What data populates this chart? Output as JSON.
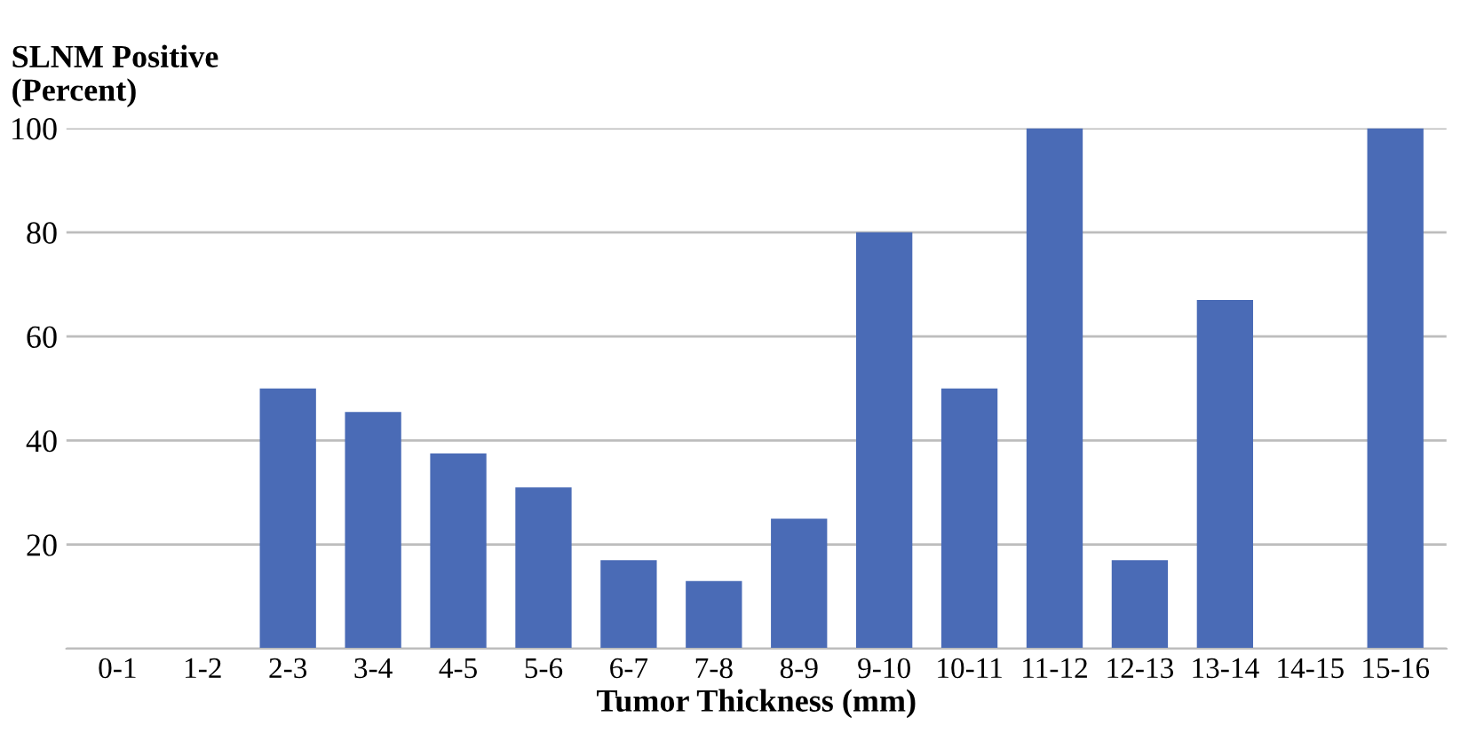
{
  "chart_data": {
    "type": "bar",
    "ylabel": "SLNM Positive\n(Percent)",
    "xlabel": "Tumor Thickness (mm)",
    "categories": [
      "0-1",
      "1-2",
      "2-3",
      "3-4",
      "4-5",
      "5-6",
      "6-7",
      "7-8",
      "8-9",
      "9-10",
      "10-11",
      "11-12",
      "12-13",
      "13-14",
      "14-15",
      "15-16"
    ],
    "values": [
      0,
      0,
      50,
      45.5,
      37.5,
      31,
      17,
      13,
      25,
      80,
      50,
      100,
      17,
      67,
      0,
      100
    ],
    "color": "#4a6bb6",
    "ylim": [
      0,
      100
    ],
    "yticks": [
      {
        "value": 0,
        "label": null
      },
      20,
      40,
      60,
      80,
      100
    ],
    "grid": "y",
    "legend": false
  }
}
